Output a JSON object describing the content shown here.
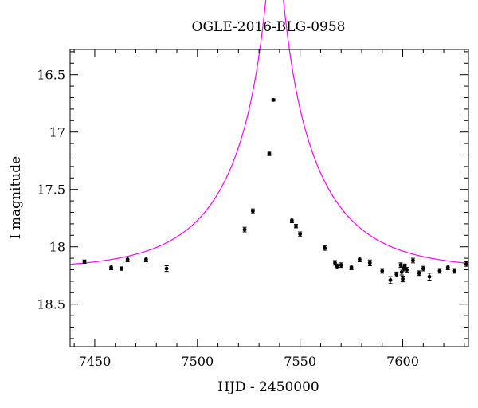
{
  "chart_data": {
    "type": "scatter",
    "title": "OGLE-2016-BLG-0958",
    "xlabel": "HJD - 2450000",
    "ylabel": "I magnitude",
    "xlim": [
      7438,
      7632
    ],
    "ylim": [
      18.87,
      16.28
    ],
    "y_inverted": true,
    "x_ticks": [
      7450,
      7500,
      7550,
      7600
    ],
    "y_ticks": [
      16.5,
      17,
      17.5,
      18,
      18.5
    ],
    "x_tick_labels": [
      "7450",
      "7500",
      "7550",
      "7600"
    ],
    "y_tick_labels": [
      "16.5",
      "17",
      "17.5",
      "18",
      "18.5"
    ],
    "x_minor_step": 10,
    "y_minor_step": 0.1,
    "grid": false,
    "series": [
      {
        "kind": "points",
        "color": "#000000",
        "points": [
          {
            "x": 7445,
            "y": 18.13,
            "err": 0.015
          },
          {
            "x": 7458,
            "y": 18.18,
            "err": 0.02
          },
          {
            "x": 7463,
            "y": 18.19,
            "err": 0.015
          },
          {
            "x": 7466,
            "y": 18.11,
            "err": 0.02
          },
          {
            "x": 7475,
            "y": 18.11,
            "err": 0.02
          },
          {
            "x": 7485,
            "y": 18.19,
            "err": 0.025
          },
          {
            "x": 7523,
            "y": 17.85,
            "err": 0.02
          },
          {
            "x": 7527,
            "y": 17.69,
            "err": 0.02
          },
          {
            "x": 7535,
            "y": 17.19,
            "err": 0.015
          },
          {
            "x": 7537,
            "y": 16.72,
            "err": 0.01
          },
          {
            "x": 7546,
            "y": 17.77,
            "err": 0.02
          },
          {
            "x": 7548,
            "y": 17.82,
            "err": 0.015
          },
          {
            "x": 7550,
            "y": 17.89,
            "err": 0.02
          },
          {
            "x": 7562,
            "y": 18.01,
            "err": 0.02
          },
          {
            "x": 7567,
            "y": 18.14,
            "err": 0.02
          },
          {
            "x": 7568,
            "y": 18.17,
            "err": 0.02
          },
          {
            "x": 7570,
            "y": 18.16,
            "err": 0.02
          },
          {
            "x": 7575,
            "y": 18.18,
            "err": 0.02
          },
          {
            "x": 7579,
            "y": 18.11,
            "err": 0.02
          },
          {
            "x": 7584,
            "y": 18.14,
            "err": 0.025
          },
          {
            "x": 7590,
            "y": 18.21,
            "err": 0.02
          },
          {
            "x": 7594,
            "y": 18.29,
            "err": 0.03
          },
          {
            "x": 7597,
            "y": 18.24,
            "err": 0.02
          },
          {
            "x": 7599,
            "y": 18.16,
            "err": 0.02
          },
          {
            "x": 7599.5,
            "y": 18.22,
            "err": 0.025
          },
          {
            "x": 7600,
            "y": 18.28,
            "err": 0.025
          },
          {
            "x": 7600.5,
            "y": 18.19,
            "err": 0.02
          },
          {
            "x": 7601,
            "y": 18.17,
            "err": 0.02
          },
          {
            "x": 7602,
            "y": 18.2,
            "err": 0.02
          },
          {
            "x": 7605,
            "y": 18.12,
            "err": 0.02
          },
          {
            "x": 7608,
            "y": 18.23,
            "err": 0.02
          },
          {
            "x": 7610,
            "y": 18.19,
            "err": 0.02
          },
          {
            "x": 7613,
            "y": 18.26,
            "err": 0.03
          },
          {
            "x": 7618,
            "y": 18.21,
            "err": 0.02
          },
          {
            "x": 7622,
            "y": 18.18,
            "err": 0.02
          },
          {
            "x": 7625,
            "y": 18.21,
            "err": 0.02
          },
          {
            "x": 7631,
            "y": 18.15,
            "err": 0.02
          }
        ]
      },
      {
        "kind": "model-curve",
        "color": "#ff00ff",
        "model": "pspl",
        "t0": 7537.6,
        "tE": 45,
        "u0": 0.065,
        "baseline_mag": 18.2
      }
    ]
  }
}
